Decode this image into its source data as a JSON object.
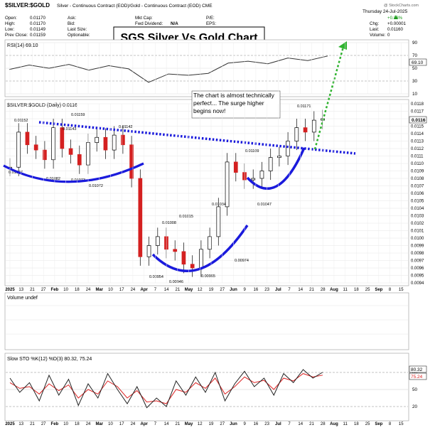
{
  "header": {
    "symbol": "$SILVER:$GOLD",
    "description": "Silver - Continuous Contract (EOD)/Gold - Continuous Contract (EOD) CME",
    "date": "Thursday   24-Jul-2025",
    "copyright": "@ StockCharts.com",
    "col1": [
      {
        "label": "Open:",
        "value": "0.01170"
      },
      {
        "label": "High:",
        "value": "0.01170"
      },
      {
        "label": "Low:",
        "value": "0.01149"
      },
      {
        "label": "Prev Close:",
        "value": "0.01159"
      }
    ],
    "col2": [
      {
        "label": "Ask:",
        "value": ""
      },
      {
        "label": "Bid:",
        "value": ""
      },
      {
        "label": "Last Size:",
        "value": ""
      },
      {
        "label": "Optionable:",
        "value": ""
      }
    ],
    "col3": [
      {
        "label": "Mkt Cap:",
        "value": ""
      },
      {
        "label": "Fwd Dividend:",
        "value": "N/A"
      },
      {
        "label": "Shares Out:",
        "value": ""
      }
    ],
    "col4": [
      {
        "label": "P/E:",
        "value": ""
      },
      {
        "label": "EPS:",
        "value": ""
      }
    ],
    "col5": [
      {
        "label": "",
        "value": "+0.08%"
      },
      {
        "label": "Chg:",
        "value": "+0.00001"
      },
      {
        "label": "Last:",
        "value": "0.01160"
      },
      {
        "label": "Volume:",
        "value": "0"
      }
    ]
  },
  "title": "SGS Silver Vs Gold Chart",
  "annotation": "The chart is almost technically perfect... The surge higher begins now!",
  "colors": {
    "trendline": "#1a1adc",
    "arc": "#1a1adc",
    "arrow": "#2fb32f",
    "candle_up": "#d42020",
    "candle_down": "#000000",
    "rsi_line": "#333333",
    "sto_k": "#222222",
    "sto_d": "#dd2222"
  },
  "chart_data": [
    {
      "type": "line",
      "name_label": "RSI(14) 69.10",
      "last_value_label": "69.10",
      "ylim": [
        10,
        90
      ],
      "ytick_labels": [
        "90",
        "70",
        "50",
        "30",
        "10"
      ],
      "x": [
        "Jan 2",
        "Jan 13",
        "Jan 27",
        "Feb 10",
        "Feb 24",
        "Mar 10",
        "Mar 24",
        "Apr 7",
        "Apr 21",
        "May 5",
        "May 19",
        "Jun 2",
        "Jun 16",
        "Jun 30",
        "Jul 10",
        "Jul 17",
        "Jul 24"
      ],
      "values": [
        48,
        55,
        50,
        56,
        47,
        54,
        49,
        28,
        41,
        39,
        42,
        58,
        61,
        57,
        66,
        62,
        69.1
      ]
    },
    {
      "type": "line",
      "subtype": "candlestick",
      "legend_label": "$SILVER:$GOLD (Daily) 0.0116",
      "last_value_label": "0.0116",
      "ylim": [
        0.0094,
        0.0118
      ],
      "ytick_labels": [
        "0.0118",
        "0.0117",
        "0.0116",
        "0.0115",
        "0.0114",
        "0.0113",
        "0.0112",
        "0.0111",
        "0.0110",
        "0.0109",
        "0.0108",
        "0.0107",
        "0.0106",
        "0.0105",
        "0.0104",
        "0.0103",
        "0.0102",
        "0.0101",
        "0.0100",
        "0.0099",
        "0.0098",
        "0.0097",
        "0.0096",
        "0.0095",
        "0.0094"
      ],
      "x": [
        "Jan 2",
        "Jan 8",
        "Jan 14",
        "Jan 21",
        "Jan 28",
        "Feb 3",
        "Feb 10",
        "Feb 17",
        "Feb 24",
        "Mar 3",
        "Mar 10",
        "Mar 17",
        "Mar 24",
        "Mar 31",
        "Apr 3",
        "Apr 7",
        "Apr 10",
        "Apr 14",
        "Apr 21",
        "Apr 28",
        "May 5",
        "May 12",
        "May 19",
        "May 26",
        "Jun 2",
        "Jun 6",
        "Jun 12",
        "Jun 18",
        "Jun 24",
        "Jun 30",
        "Jul 3",
        "Jul 8",
        "Jul 11",
        "Jul 15",
        "Jul 18",
        "Jul 22",
        "Jul 24"
      ],
      "values": [
        0.01095,
        0.01142,
        0.01125,
        0.01118,
        0.01105,
        0.01148,
        0.0112,
        0.01112,
        0.01098,
        0.01128,
        0.01135,
        0.01118,
        0.01138,
        0.01125,
        0.0108,
        0.00975,
        0.0099,
        0.01002,
        0.00985,
        0.00982,
        0.00965,
        0.0096,
        0.00985,
        0.01002,
        0.01042,
        0.01102,
        0.01088,
        0.01078,
        0.0108,
        0.0109,
        0.01108,
        0.0111,
        0.0113,
        0.01148,
        0.01142,
        0.01158,
        0.0116
      ],
      "price_labels": [
        "0.01152",
        "0.01159",
        "0.01143",
        "0.01142",
        "0.01097",
        "0.01082",
        "0.01073",
        "0.01072",
        "0.00954",
        "0.01008",
        "0.01015",
        "0.00946",
        "0.00965",
        "0.01034",
        "0.00974",
        "0.01109",
        "0.01047",
        "0.01171"
      ],
      "xtick_labels": [
        "2025",
        "13",
        "21",
        "27",
        "Feb",
        "10",
        "18",
        "24",
        "Mar",
        "10",
        "17",
        "24",
        "Apr",
        "7",
        "14",
        "21",
        "May",
        "12",
        "19",
        "27",
        "Jun",
        "9",
        "16",
        "23",
        "Jul",
        "7",
        "14",
        "21",
        "28",
        "Aug",
        "11",
        "18",
        "25",
        "Sep",
        "8",
        "15"
      ]
    },
    {
      "type": "bar",
      "legend_label": "Volume undef",
      "values": []
    },
    {
      "type": "line",
      "legend_label": "Slow STO %K(12) %D(3) 80.32, 75.24",
      "last_values": [
        "80.32",
        "75.24"
      ],
      "ylim": [
        0,
        100
      ],
      "ytick_labels": [
        "80",
        "50",
        "20"
      ],
      "series": [
        {
          "name": "%K(12)",
          "values": [
            70,
            45,
            62,
            30,
            75,
            40,
            68,
            22,
            60,
            35,
            78,
            50,
            25,
            55,
            18,
            35,
            20,
            65,
            40,
            72,
            45,
            80,
            30,
            60,
            82,
            55,
            70,
            40,
            78,
            62,
            85,
            70,
            80.32
          ]
        },
        {
          "name": "%D(3)",
          "values": [
            62,
            52,
            55,
            42,
            60,
            48,
            58,
            35,
            50,
            42,
            65,
            55,
            35,
            48,
            28,
            30,
            25,
            50,
            45,
            62,
            52,
            70,
            42,
            55,
            72,
            62,
            66,
            50,
            70,
            65,
            78,
            72,
            75.24
          ]
        }
      ]
    }
  ]
}
